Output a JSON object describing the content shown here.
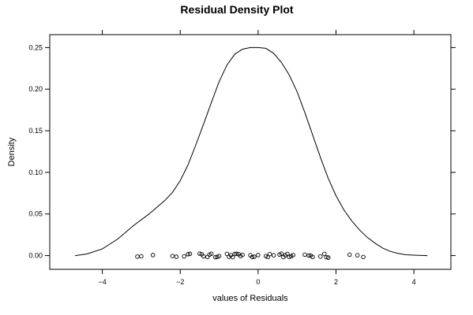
{
  "chart_data": {
    "type": "line",
    "title": "Residual Density Plot",
    "xlabel": "values of Residuals",
    "ylabel": "Density",
    "xlim": [
      -5.35,
      4.95
    ],
    "ylim": [
      -0.0165,
      0.2655
    ],
    "x_ticks": [
      {
        "value": -4,
        "label": "−4"
      },
      {
        "value": -2,
        "label": "−2"
      },
      {
        "value": 0,
        "label": "0"
      },
      {
        "value": 2,
        "label": "2"
      },
      {
        "value": 4,
        "label": "4"
      }
    ],
    "y_ticks": [
      {
        "value": 0.0,
        "label": "0.00"
      },
      {
        "value": 0.05,
        "label": "0.05"
      },
      {
        "value": 0.1,
        "label": "0.10"
      },
      {
        "value": 0.15,
        "label": "0.15"
      },
      {
        "value": 0.2,
        "label": "0.20"
      },
      {
        "value": 0.25,
        "label": "0.25"
      }
    ],
    "grid": false,
    "density_curve": {
      "x": [
        -4.7,
        -4.4,
        -4.0,
        -3.6,
        -3.2,
        -2.8,
        -2.6,
        -2.4,
        -2.2,
        -2.0,
        -1.8,
        -1.6,
        -1.4,
        -1.2,
        -1.0,
        -0.8,
        -0.6,
        -0.4,
        -0.2,
        0.0,
        0.2,
        0.4,
        0.6,
        0.8,
        1.0,
        1.2,
        1.4,
        1.6,
        1.8,
        2.0,
        2.2,
        2.4,
        2.6,
        2.8,
        3.0,
        3.2,
        3.4,
        3.6,
        3.8,
        4.0,
        4.2,
        4.35
      ],
      "y": [
        0.0,
        0.002,
        0.008,
        0.02,
        0.036,
        0.05,
        0.058,
        0.066,
        0.076,
        0.09,
        0.109,
        0.133,
        0.158,
        0.184,
        0.209,
        0.229,
        0.242,
        0.248,
        0.25,
        0.25,
        0.249,
        0.243,
        0.232,
        0.217,
        0.197,
        0.172,
        0.145,
        0.118,
        0.093,
        0.072,
        0.055,
        0.042,
        0.031,
        0.022,
        0.015,
        0.009,
        0.005,
        0.0025,
        0.001,
        0.0005,
        0.0002,
        0.0
      ]
    },
    "rug_points": {
      "x": [
        -3.1,
        -3.0,
        -2.7,
        -2.2,
        -2.1,
        -1.9,
        -1.8,
        -1.75,
        -1.5,
        -1.45,
        -1.4,
        -1.3,
        -1.25,
        -1.2,
        -1.1,
        -1.05,
        -1.0,
        -0.8,
        -0.75,
        -0.7,
        -0.65,
        -0.6,
        -0.55,
        -0.5,
        -0.45,
        -0.4,
        -0.2,
        -0.15,
        -0.1,
        0.0,
        0.2,
        0.25,
        0.3,
        0.4,
        0.55,
        0.6,
        0.65,
        0.7,
        0.75,
        0.8,
        0.85,
        0.9,
        1.2,
        1.3,
        1.35,
        1.4,
        1.6,
        1.7,
        1.75,
        1.8,
        1.8,
        2.35,
        2.55,
        2.7
      ],
      "y": [
        -0.0012,
        -0.0008,
        0.0006,
        -0.0005,
        -0.0014,
        -0.0009,
        0.0017,
        0.0021,
        0.0024,
        0.0016,
        -0.0009,
        -0.0017,
        0.0011,
        0.0022,
        -0.0019,
        -0.0016,
        -0.0005,
        0.0021,
        -0.0014,
        0.0005,
        -0.0019,
        0.0019,
        0.0022,
        0.0016,
        -0.0006,
        0.0009,
        0.0005,
        -0.0017,
        -0.0014,
        0.0006,
        -0.0006,
        -0.0018,
        0.0018,
        0.0004,
        0.0012,
        0.0023,
        -0.0018,
        0.0004,
        0.0021,
        -0.0017,
        -0.0007,
        0.0007,
        0.0011,
        0.0001,
        0.0001,
        -0.0016,
        -0.0011,
        0.0021,
        -0.0019,
        -0.0023,
        -0.0024,
        0.0011,
        0.0004,
        -0.0017
      ]
    }
  }
}
